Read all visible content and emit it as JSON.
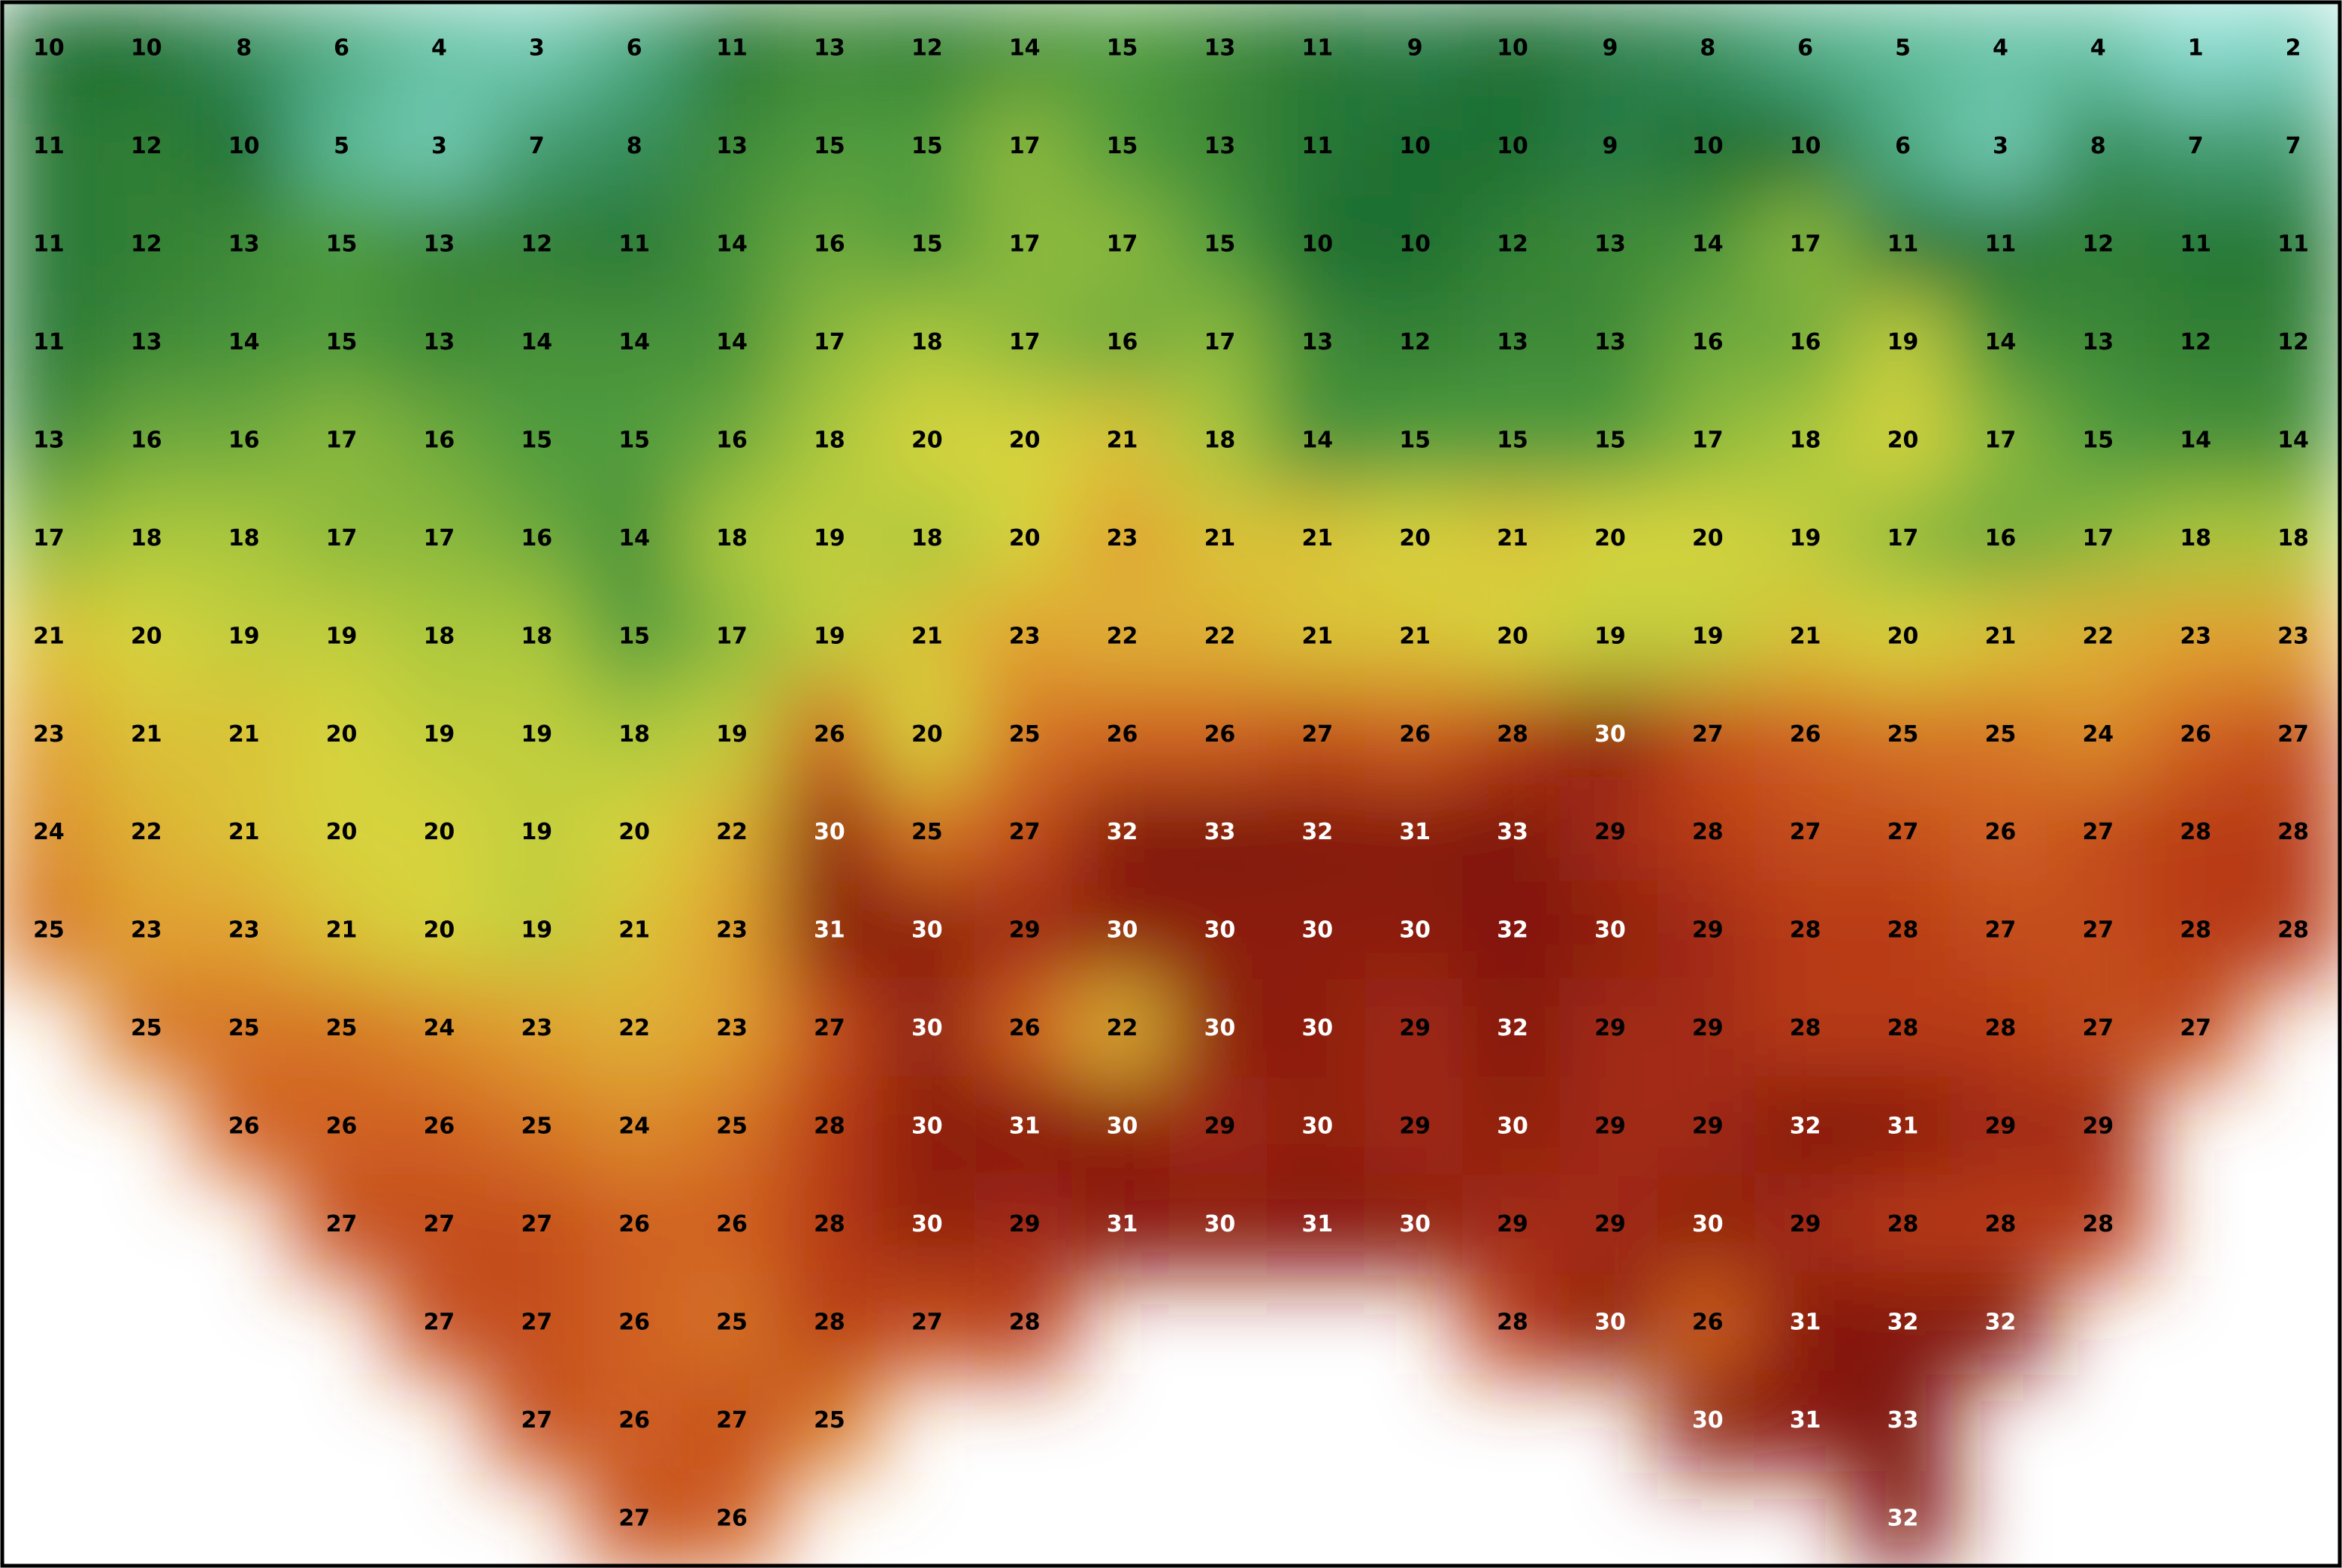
{
  "map": {
    "grid": [
      [
        10,
        10,
        8,
        6,
        4,
        3,
        6,
        11,
        13,
        12,
        14,
        15,
        13,
        11,
        9,
        10,
        9,
        8,
        6,
        5,
        4,
        4,
        1,
        2
      ],
      [
        11,
        12,
        10,
        5,
        3,
        7,
        8,
        13,
        15,
        15,
        17,
        15,
        13,
        11,
        10,
        10,
        9,
        10,
        10,
        6,
        3,
        8,
        7,
        7
      ],
      [
        11,
        12,
        13,
        15,
        13,
        12,
        11,
        14,
        16,
        15,
        17,
        17,
        15,
        10,
        10,
        12,
        13,
        14,
        17,
        11,
        11,
        12,
        11,
        11
      ],
      [
        11,
        13,
        14,
        15,
        13,
        14,
        14,
        14,
        17,
        18,
        17,
        16,
        17,
        13,
        12,
        13,
        13,
        16,
        16,
        19,
        14,
        13,
        12,
        12
      ],
      [
        13,
        16,
        16,
        17,
        16,
        15,
        15,
        16,
        18,
        20,
        20,
        21,
        18,
        14,
        15,
        15,
        15,
        17,
        18,
        20,
        17,
        15,
        14,
        14
      ],
      [
        17,
        18,
        18,
        17,
        17,
        16,
        14,
        18,
        19,
        18,
        20,
        23,
        21,
        21,
        20,
        21,
        20,
        20,
        19,
        17,
        16,
        17,
        18,
        18
      ],
      [
        21,
        20,
        19,
        19,
        18,
        18,
        15,
        17,
        19,
        21,
        23,
        22,
        22,
        21,
        21,
        20,
        19,
        19,
        21,
        20,
        21,
        22,
        23,
        23
      ],
      [
        23,
        21,
        21,
        20,
        19,
        19,
        18,
        19,
        26,
        20,
        25,
        26,
        26,
        27,
        26,
        28,
        30,
        27,
        26,
        25,
        25,
        24,
        26,
        27
      ],
      [
        24,
        22,
        21,
        20,
        20,
        19,
        20,
        22,
        30,
        25,
        27,
        32,
        33,
        32,
        31,
        33,
        29,
        28,
        27,
        27,
        26,
        27,
        28,
        28
      ],
      [
        25,
        23,
        23,
        21,
        20,
        19,
        21,
        23,
        31,
        30,
        29,
        30,
        30,
        30,
        30,
        32,
        30,
        29,
        28,
        28,
        27,
        27,
        28,
        28
      ],
      [
        null,
        25,
        25,
        25,
        24,
        23,
        22,
        23,
        27,
        30,
        26,
        22,
        30,
        30,
        29,
        32,
        29,
        29,
        28,
        28,
        28,
        27,
        27,
        null
      ],
      [
        null,
        null,
        26,
        26,
        26,
        25,
        24,
        25,
        28,
        30,
        31,
        30,
        29,
        30,
        29,
        30,
        29,
        29,
        32,
        31,
        29,
        29,
        null,
        null
      ],
      [
        null,
        null,
        null,
        27,
        27,
        27,
        26,
        26,
        28,
        30,
        29,
        31,
        30,
        31,
        30,
        29,
        29,
        30,
        29,
        28,
        28,
        28,
        null,
        null
      ],
      [
        null,
        null,
        null,
        null,
        27,
        27,
        26,
        25,
        28,
        27,
        28,
        null,
        null,
        null,
        null,
        28,
        30,
        26,
        31,
        32,
        32,
        null,
        null,
        null
      ],
      [
        null,
        null,
        null,
        null,
        null,
        27,
        26,
        27,
        25,
        null,
        null,
        null,
        null,
        null,
        null,
        null,
        null,
        30,
        31,
        33,
        null,
        null,
        null,
        null
      ],
      [
        null,
        null,
        null,
        null,
        null,
        null,
        27,
        26,
        null,
        null,
        null,
        null,
        null,
        null,
        null,
        null,
        null,
        null,
        null,
        32,
        null,
        null,
        null,
        null
      ]
    ]
  }
}
